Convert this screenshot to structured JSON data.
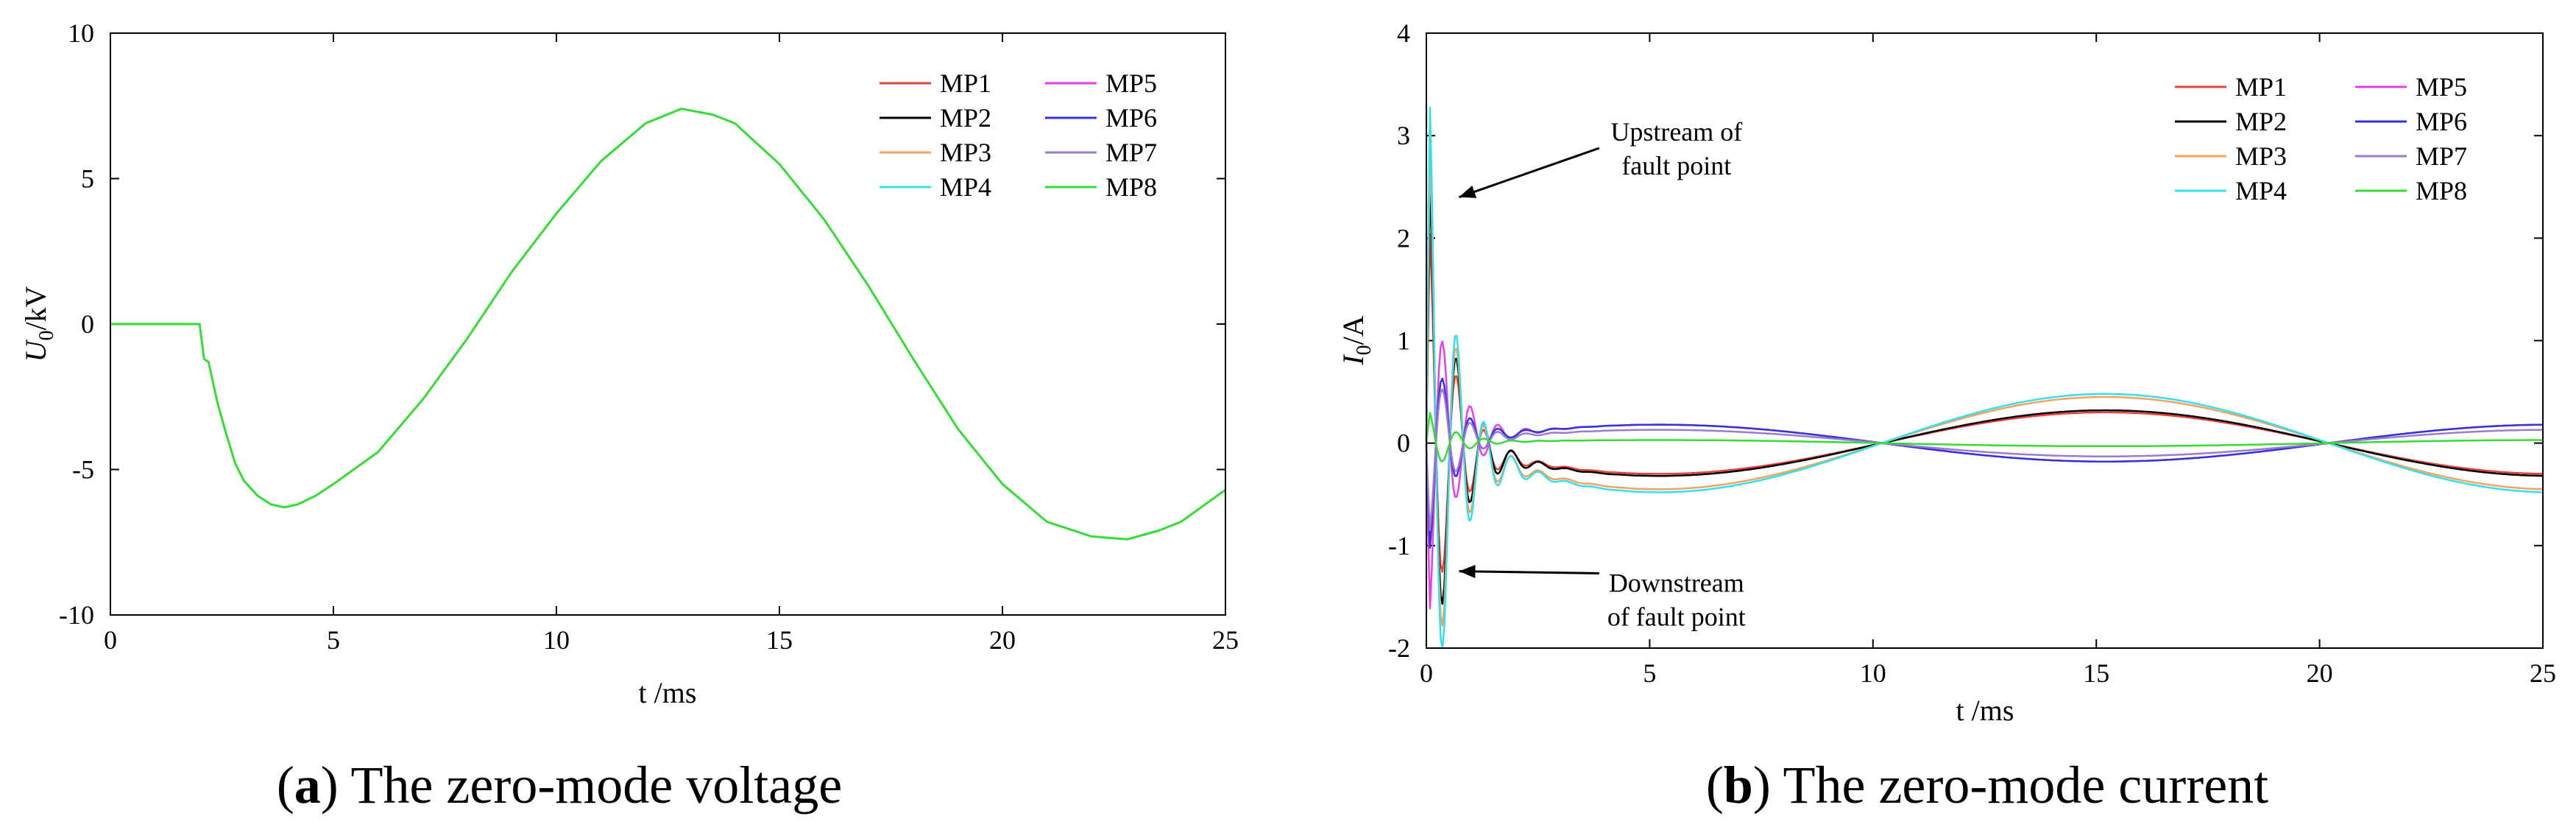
{
  "figure": {
    "caption_a": {
      "letter": "a",
      "text": "The zero-mode voltage"
    },
    "caption_b": {
      "letter": "b",
      "text": "The zero-mode current"
    }
  },
  "chart_data": [
    {
      "id": "a",
      "type": "line",
      "xlabel": "t /ms",
      "ylabel": {
        "main": "U",
        "sub": "0",
        "rest": "/kV"
      },
      "xlim": [
        0,
        25
      ],
      "ylim": [
        -10,
        10
      ],
      "xticks": [
        0,
        5,
        10,
        15,
        20,
        25
      ],
      "yticks": [
        10,
        5,
        0,
        -5,
        -10
      ],
      "legend_position": "top-right",
      "series": [
        {
          "name": "MP1",
          "color": "#e8403a"
        },
        {
          "name": "MP2",
          "color": "#000000"
        },
        {
          "name": "MP3",
          "color": "#f4a261"
        },
        {
          "name": "MP4",
          "color": "#34e0e8"
        },
        {
          "name": "MP5",
          "color": "#e83ee8"
        },
        {
          "name": "MP6",
          "color": "#3333dd"
        },
        {
          "name": "MP7",
          "color": "#9a7ccf"
        },
        {
          "name": "MP8",
          "color": "#33dd33"
        }
      ],
      "curve": {
        "drawn_by": "MP8",
        "x": [
          0,
          1,
          2.0,
          2.1,
          2.2,
          2.4,
          2.6,
          2.8,
          3.0,
          3.3,
          3.6,
          3.9,
          4.2,
          4.6,
          5,
          6,
          7,
          8,
          9,
          10,
          11,
          12,
          12.8,
          13.5,
          14,
          15,
          16,
          17,
          18,
          19,
          20,
          21,
          22,
          22.8,
          23.5,
          24,
          25
        ],
        "y": [
          0,
          0,
          0,
          -1.2,
          -1.3,
          -2.7,
          -3.8,
          -4.8,
          -5.4,
          -5.9,
          -6.2,
          -6.3,
          -6.2,
          -5.9,
          -5.5,
          -4.4,
          -2.6,
          -0.5,
          1.8,
          3.8,
          5.6,
          6.9,
          7.4,
          7.2,
          6.9,
          5.5,
          3.6,
          1.3,
          -1.2,
          -3.6,
          -5.5,
          -6.8,
          -7.3,
          -7.4,
          -7.1,
          -6.8,
          -5.7
        ]
      }
    },
    {
      "id": "b",
      "type": "line",
      "xlabel": "t /ms",
      "ylabel": {
        "main": "I",
        "sub": "0",
        "rest": "/A"
      },
      "xlim": [
        0,
        25
      ],
      "ylim": [
        -2,
        4
      ],
      "xticks": [
        0,
        5,
        10,
        15,
        20,
        25
      ],
      "yticks": [
        4,
        3,
        2,
        1,
        0,
        -1,
        -2
      ],
      "legend_position": "top-right",
      "annotations": [
        {
          "lines": [
            "Upstream of",
            "fault point"
          ],
          "x": 5.6,
          "y": 2.95,
          "arrow_to": [
            0.6,
            2.4
          ]
        },
        {
          "lines": [
            "Downstream",
            "of fault point"
          ],
          "x": 5.6,
          "y": -1.45,
          "arrow_to": [
            0.6,
            -1.25
          ]
        }
      ],
      "series": [
        {
          "name": "MP1",
          "color": "#e8403a",
          "peak": 2.4,
          "amplitude": 0.3
        },
        {
          "name": "MP2",
          "color": "#000000",
          "peak": 3.0,
          "amplitude": 0.32
        },
        {
          "name": "MP3",
          "color": "#f4a261",
          "peak": 3.4,
          "amplitude": 0.45
        },
        {
          "name": "MP4",
          "color": "#34e0e8",
          "peak": 3.85,
          "amplitude": 0.48
        },
        {
          "name": "MP5",
          "color": "#e83ee8",
          "peak": -1.9,
          "amplitude": -0.18
        },
        {
          "name": "MP6",
          "color": "#3333dd",
          "peak": -1.2,
          "amplitude": -0.18
        },
        {
          "name": "MP7",
          "color": "#9a7ccf",
          "peak": -1.0,
          "amplitude": -0.13
        },
        {
          "name": "MP8",
          "color": "#33dd33",
          "peak": 0.35,
          "amplitude": -0.03
        }
      ]
    }
  ]
}
